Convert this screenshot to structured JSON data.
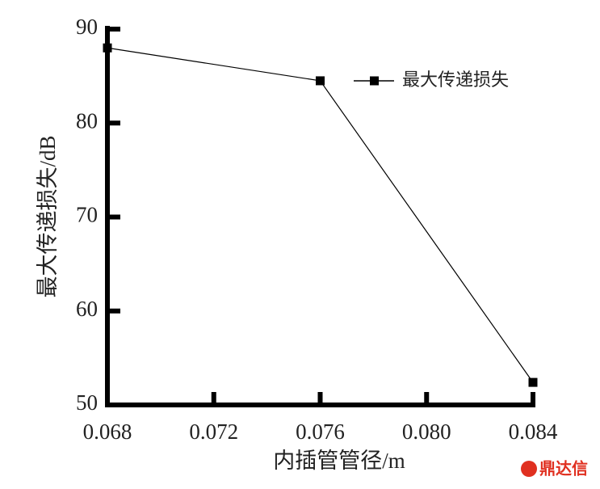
{
  "chart_data": {
    "type": "line",
    "x_label": "内插管管径/m",
    "y_label": "最大传递损失/dB",
    "x": [
      0.068,
      0.076,
      0.084
    ],
    "series": [
      {
        "name": "最大传递损失",
        "color": "#000000",
        "values": [
          88,
          84.5,
          52.4
        ]
      }
    ],
    "xlim": [
      0.068,
      0.084
    ],
    "xticks": [
      0.068,
      0.072,
      0.076,
      {
        "value": 0.08,
        "label": "0.080"
      },
      0.084
    ],
    "ylim": [
      50,
      90
    ],
    "yticks": [
      50,
      60,
      70,
      80,
      90
    ],
    "legend": "upper-right",
    "watermark": "鼎达信"
  }
}
